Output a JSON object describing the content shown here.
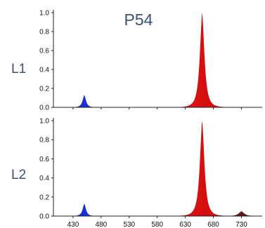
{
  "chart_data": {
    "type": "area",
    "title": "P54",
    "xlabel": "",
    "ylabel": "",
    "grid": false,
    "xlim": [
      395,
      767
    ],
    "x_ticks": [
      430,
      480,
      530,
      580,
      630,
      680,
      730
    ],
    "x_tick_labels": [
      "430",
      "480",
      "530",
      "580",
      "630",
      "680",
      "730"
    ],
    "y_ticks": [
      0.0,
      0.2,
      0.4,
      0.6,
      0.8,
      1.0
    ],
    "y_tick_labels": [
      "0.0",
      "0.2",
      "0.4",
      "0.6",
      "0.8",
      "1.0"
    ],
    "colors": {
      "blue": "#1a2fd6",
      "blue_edge": "#38b8d8",
      "red": "#e41212",
      "dark_red": "#5c1a10",
      "label": "#3a5278"
    },
    "panels": [
      {
        "label": "L1",
        "ylim": [
          0,
          1.0
        ],
        "peaks": [
          {
            "name": "blue",
            "center": 450,
            "height": 0.13,
            "width": 5.5
          },
          {
            "name": "red",
            "center": 660,
            "height": 1.0,
            "width": 7.5
          }
        ]
      },
      {
        "label": "L2",
        "ylim": [
          0,
          1.0
        ],
        "peaks": [
          {
            "name": "blue",
            "center": 450,
            "height": 0.13,
            "width": 5.5
          },
          {
            "name": "red",
            "center": 660,
            "height": 1.0,
            "width": 7.5
          },
          {
            "name": "far-red",
            "center": 730,
            "height": 0.05,
            "width": 9
          }
        ]
      }
    ]
  }
}
